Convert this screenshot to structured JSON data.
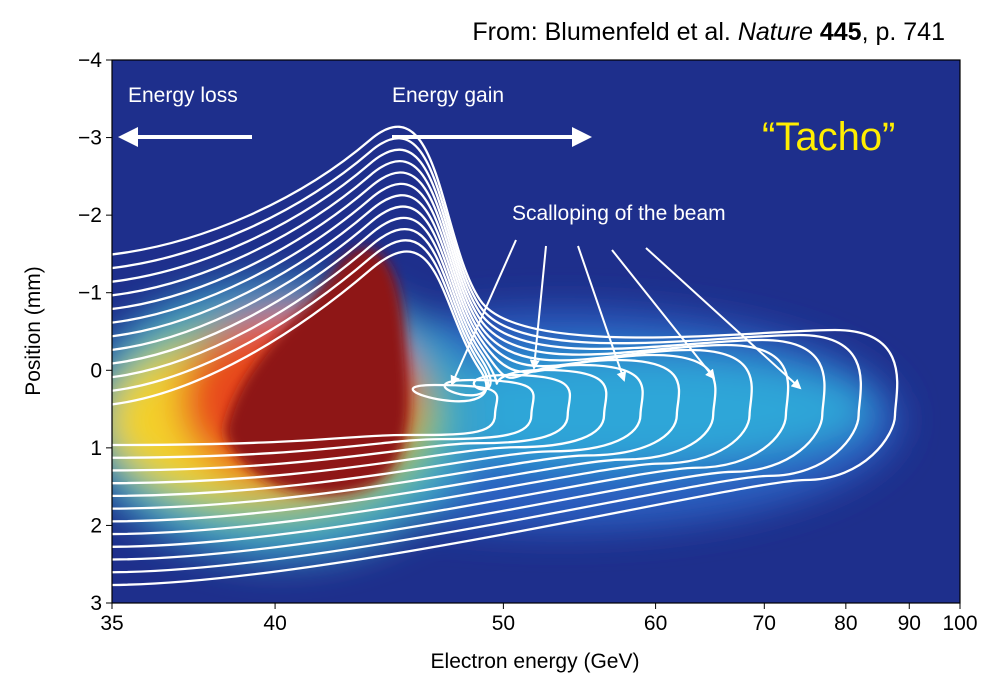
{
  "chart_data": {
    "type": "contour",
    "source": {
      "prefix": "From: Blumenfeld et al.",
      "journal": "Nature",
      "volume": "445",
      "pages": ", p. 741"
    },
    "x_label": "Electron energy (GeV)",
    "y_label": "Position (mm)",
    "xscale": "reciprocal",
    "xlim": [
      35,
      100
    ],
    "xticks": [
      35,
      40,
      50,
      60,
      70,
      80,
      90,
      100
    ],
    "ylim": [
      -4,
      3
    ],
    "y_inverted": true,
    "yticks": [
      {
        "value": -4,
        "label": "−4"
      },
      {
        "value": -3,
        "label": "−3"
      },
      {
        "value": -2,
        "label": "−2"
      },
      {
        "value": -1,
        "label": "−1"
      },
      0,
      1,
      2,
      3
    ],
    "annotations": {
      "loss": "Energy loss",
      "gain": "Energy gain",
      "scalloping": "Scalloping of the beam",
      "name": "“Tacho”"
    }
  }
}
